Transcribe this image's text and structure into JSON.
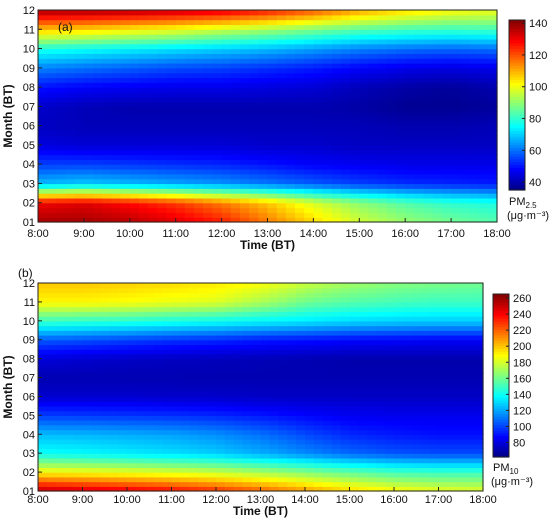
{
  "colors": {
    "colormap": "jet",
    "frame": "#222222",
    "background": "#ffffff"
  },
  "chart_data": [
    {
      "type": "heatmap",
      "panel_label": "(a)",
      "xlabel": "Time (BT)",
      "ylabel": "Month (BT)",
      "x_ticks": [
        "8:00",
        "9:00",
        "10:00",
        "11:00",
        "12:00",
        "13:00",
        "14:00",
        "15:00",
        "16:00",
        "17:00",
        "18:00"
      ],
      "y_ticks": [
        "01",
        "02",
        "03",
        "04",
        "05",
        "06",
        "07",
        "08",
        "09",
        "10",
        "11",
        "12"
      ],
      "colorbar": {
        "label_main": "PM",
        "label_sub": "2.5",
        "unit": "(μg·m⁻³)",
        "ticks": [
          "40",
          "60",
          "80",
          "100",
          "120",
          "140"
        ],
        "vmin": 35,
        "vmax": 142
      },
      "x_hours": [
        8,
        9,
        10,
        11,
        12,
        13,
        14,
        15,
        16,
        17,
        18
      ],
      "months": [
        1,
        2,
        3,
        4,
        5,
        6,
        7,
        8,
        9,
        10,
        11,
        12
      ],
      "values": [
        [
          138,
          138,
          136,
          132,
          126,
          116,
          106,
          97,
          91,
          87,
          84
        ],
        [
          130,
          132,
          128,
          123,
          116,
          108,
          98,
          90,
          84,
          80,
          78
        ],
        [
          68,
          70,
          68,
          66,
          64,
          61,
          58,
          55,
          53,
          52,
          51
        ],
        [
          55,
          55,
          54,
          53,
          52,
          50,
          48,
          47,
          46,
          46,
          46
        ],
        [
          45,
          44,
          44,
          44,
          44,
          43,
          43,
          42,
          42,
          42,
          42
        ],
        [
          42,
          41,
          41,
          41,
          41,
          41,
          41,
          41,
          40,
          40,
          41
        ],
        [
          43,
          41,
          40,
          40,
          40,
          40,
          40,
          39,
          37,
          37,
          38
        ],
        [
          50,
          48,
          47,
          46,
          46,
          45,
          44,
          41,
          39,
          38,
          40
        ],
        [
          62,
          60,
          58,
          56,
          55,
          53,
          51,
          48,
          46,
          45,
          46
        ],
        [
          78,
          76,
          74,
          72,
          70,
          68,
          65,
          62,
          60,
          59,
          60
        ],
        [
          108,
          106,
          103,
          100,
          96,
          92,
          88,
          84,
          82,
          81,
          82
        ],
        [
          138,
          138,
          137,
          135,
          132,
          127,
          120,
          112,
          106,
          102,
          100
        ]
      ]
    },
    {
      "type": "heatmap",
      "panel_label": "(b)",
      "xlabel": "Time (BT)",
      "ylabel": "Month (BT)",
      "x_ticks": [
        "8:00",
        "9:00",
        "10:00",
        "11:00",
        "12:00",
        "13:00",
        "14:00",
        "15:00",
        "16:00",
        "17:00",
        "18:00"
      ],
      "y_ticks": [
        "01",
        "02",
        "03",
        "04",
        "05",
        "06",
        "07",
        "08",
        "09",
        "10",
        "11",
        "12"
      ],
      "colorbar": {
        "label_main": "PM",
        "label_sub": "10",
        "unit": "(μg·m⁻³)",
        "ticks": [
          "80",
          "100",
          "120",
          "140",
          "160",
          "180",
          "200",
          "220",
          "240",
          "260"
        ],
        "vmin": 62,
        "vmax": 265
      },
      "x_hours": [
        8,
        9,
        10,
        11,
        12,
        13,
        14,
        15,
        16,
        17,
        18
      ],
      "months": [
        1,
        2,
        3,
        4,
        5,
        6,
        7,
        8,
        9,
        10,
        11,
        12
      ],
      "values": [
        [
          255,
          250,
          245,
          240,
          232,
          222,
          210,
          198,
          190,
          185,
          183
        ],
        [
          190,
          188,
          185,
          182,
          178,
          172,
          165,
          158,
          152,
          150,
          150
        ],
        [
          140,
          138,
          135,
          132,
          128,
          122,
          115,
          108,
          104,
          102,
          102
        ],
        [
          125,
          124,
          122,
          120,
          116,
          110,
          102,
          95,
          92,
          90,
          90
        ],
        [
          100,
          99,
          98,
          97,
          95,
          92,
          88,
          85,
          84,
          84,
          84
        ],
        [
          78,
          78,
          78,
          77,
          77,
          76,
          76,
          76,
          76,
          76,
          76
        ],
        [
          72,
          72,
          72,
          72,
          72,
          72,
          72,
          72,
          72,
          72,
          72
        ],
        [
          80,
          78,
          76,
          75,
          74,
          73,
          72,
          71,
          71,
          71,
          71
        ],
        [
          105,
          103,
          100,
          97,
          95,
          92,
          90,
          88,
          87,
          86,
          86
        ],
        [
          150,
          148,
          146,
          143,
          140,
          137,
          134,
          131,
          129,
          128,
          128
        ],
        [
          190,
          190,
          188,
          185,
          182,
          172,
          160,
          155,
          152,
          150,
          150
        ],
        [
          200,
          200,
          198,
          196,
          193,
          188,
          178,
          170,
          165,
          162,
          160
        ]
      ]
    }
  ]
}
